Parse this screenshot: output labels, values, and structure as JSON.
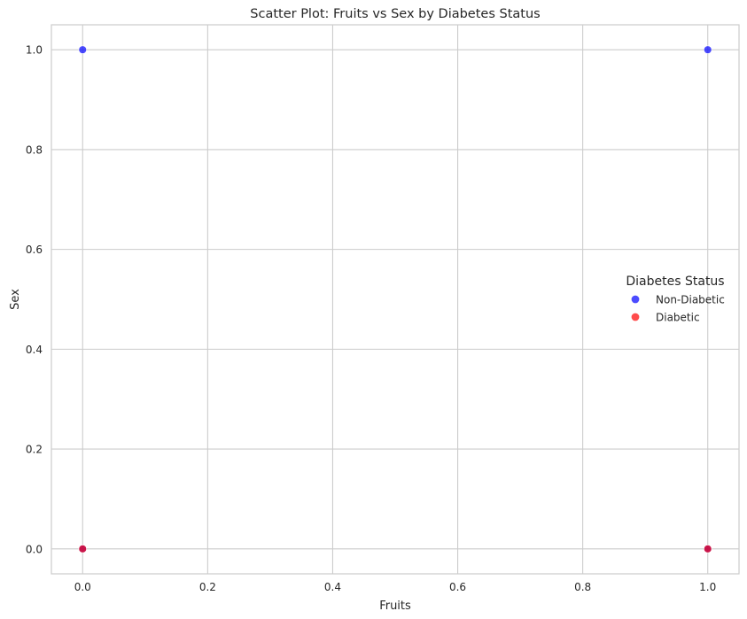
{
  "chart_data": {
    "type": "scatter",
    "title": "Scatter Plot: Fruits vs Sex by Diabetes Status",
    "xlabel": "Fruits",
    "ylabel": "Sex",
    "xlim": [
      -0.05,
      1.05
    ],
    "ylim": [
      -0.05,
      1.05
    ],
    "x_ticks": [
      0.0,
      0.2,
      0.4,
      0.6,
      0.8,
      1.0
    ],
    "y_ticks": [
      0.0,
      0.2,
      0.4,
      0.6,
      0.8,
      1.0
    ],
    "x_tick_labels": [
      "0.0",
      "0.2",
      "0.4",
      "0.6",
      "0.8",
      "1.0"
    ],
    "y_tick_labels": [
      "0.0",
      "0.2",
      "0.4",
      "0.6",
      "0.8",
      "1.0"
    ],
    "grid": true,
    "legend": {
      "title": "Diabetes Status",
      "placement": "center-right",
      "entries": [
        "Non-Diabetic",
        "Diabetic"
      ]
    },
    "series": [
      {
        "name": "Non-Diabetic",
        "color": "#0000ff",
        "points": [
          {
            "x": 0.0,
            "y": 0.0
          },
          {
            "x": 0.0,
            "y": 1.0
          },
          {
            "x": 1.0,
            "y": 0.0
          },
          {
            "x": 1.0,
            "y": 1.0
          }
        ]
      },
      {
        "name": "Diabetic",
        "color": "#ff0000",
        "points": [
          {
            "x": 0.0,
            "y": 0.0
          },
          {
            "x": 1.0,
            "y": 0.0
          }
        ]
      }
    ]
  }
}
